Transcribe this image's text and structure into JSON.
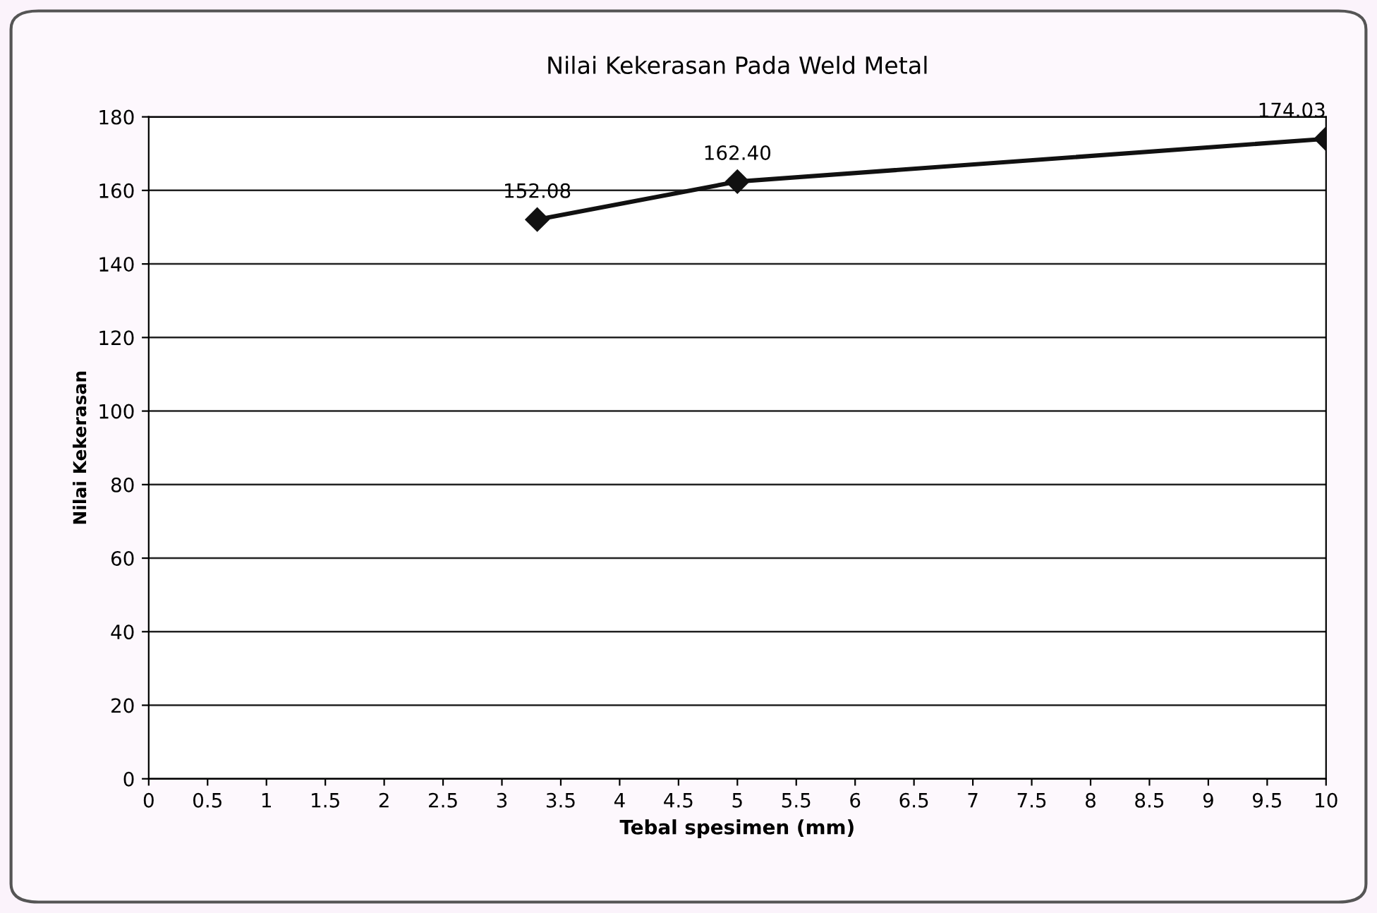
{
  "chart_data": {
    "type": "line",
    "title": "Nilai Kekerasan Pada Weld Metal",
    "xlabel": "Tebal spesimen (mm)",
    "ylabel": "Nilai Kekerasan",
    "x": [
      3.3,
      5,
      10
    ],
    "series": [
      {
        "color": "#111111",
        "values": [
          152.08,
          162.4,
          174.03
        ],
        "value_labels": [
          "152.08",
          "162.40",
          "174.03"
        ]
      }
    ],
    "xlim": [
      0,
      10
    ],
    "xticks": [
      0,
      0.5,
      1,
      1.5,
      2,
      2.5,
      3,
      3.5,
      4,
      4.5,
      5,
      5.5,
      6,
      6.5,
      7,
      7.5,
      8,
      8.5,
      9,
      9.5,
      10
    ],
    "ylim": [
      0,
      180
    ],
    "yticks": [
      0,
      20,
      40,
      60,
      80,
      100,
      120,
      140,
      160,
      180
    ],
    "grid": "y",
    "marker": "diamond",
    "line_style": "solid",
    "legend": false
  }
}
